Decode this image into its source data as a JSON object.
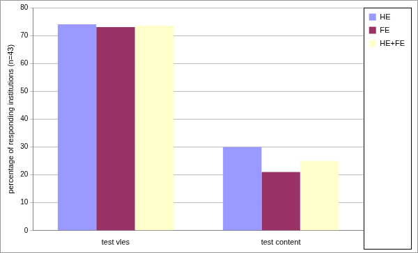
{
  "chart_data": {
    "type": "bar",
    "y_label": "percentage of responding institutions (n=43)",
    "categories": [
      "test vles",
      "test content"
    ],
    "series": [
      {
        "name": "HE",
        "color": "#9999ff",
        "values": [
          74,
          30
        ]
      },
      {
        "name": "FE",
        "color": "#993366",
        "values": [
          73,
          21
        ]
      },
      {
        "name": "HE+FE",
        "color": "#ffffcc",
        "values": [
          73.5,
          25
        ]
      }
    ],
    "ylim": [
      0,
      80
    ],
    "yticks": [
      0,
      10,
      20,
      30,
      40,
      50,
      60,
      70,
      80
    ],
    "grid": true,
    "legend": "top-right"
  }
}
